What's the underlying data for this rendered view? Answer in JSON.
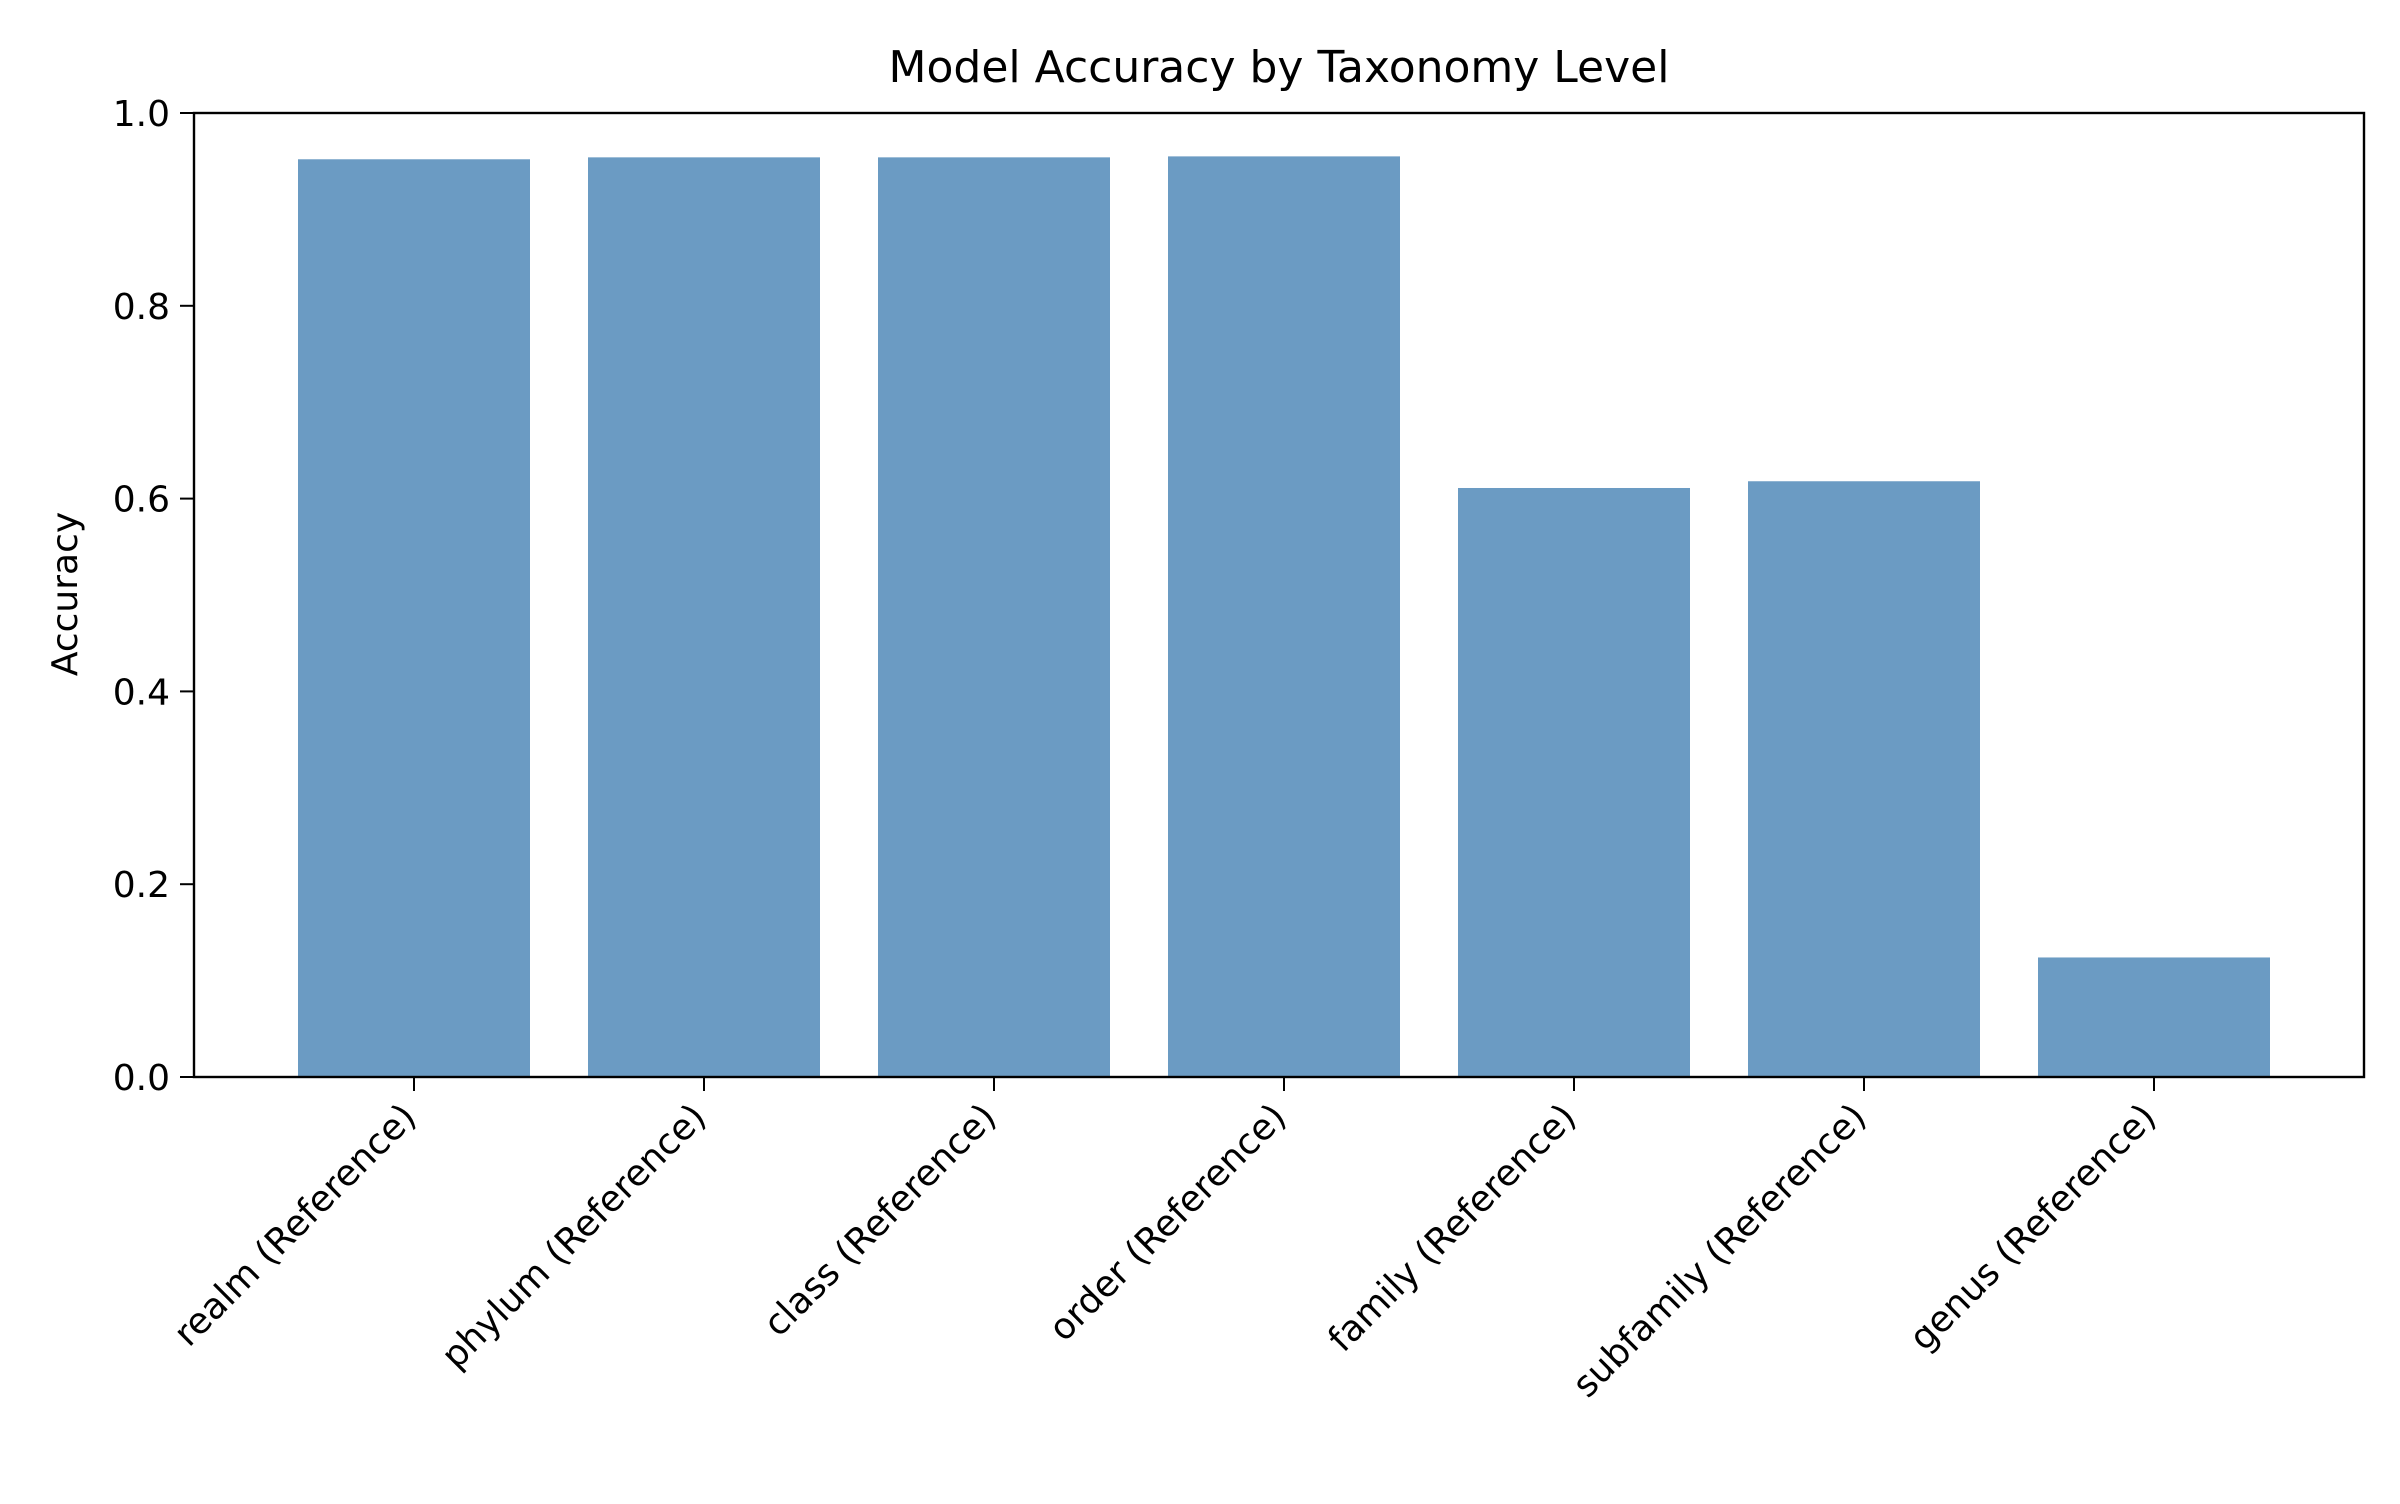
{
  "chart_data": {
    "type": "bar",
    "title": "Model Accuracy by Taxonomy Level",
    "xlabel": "",
    "ylabel": "Accuracy",
    "categories": [
      "realm (Reference)",
      "phylum (Reference)",
      "class (Reference)",
      "order (Reference)",
      "family (Reference)",
      "subfamily (Reference)",
      "genus (Reference)"
    ],
    "values": [
      0.952,
      0.954,
      0.954,
      0.955,
      0.611,
      0.618,
      0.124
    ],
    "ylim": [
      0,
      1.0
    ],
    "yticks": [
      "0.0",
      "0.2",
      "0.4",
      "0.6",
      "0.8",
      "1.0"
    ],
    "grid": false,
    "bar_color": "#6b9bc3"
  }
}
